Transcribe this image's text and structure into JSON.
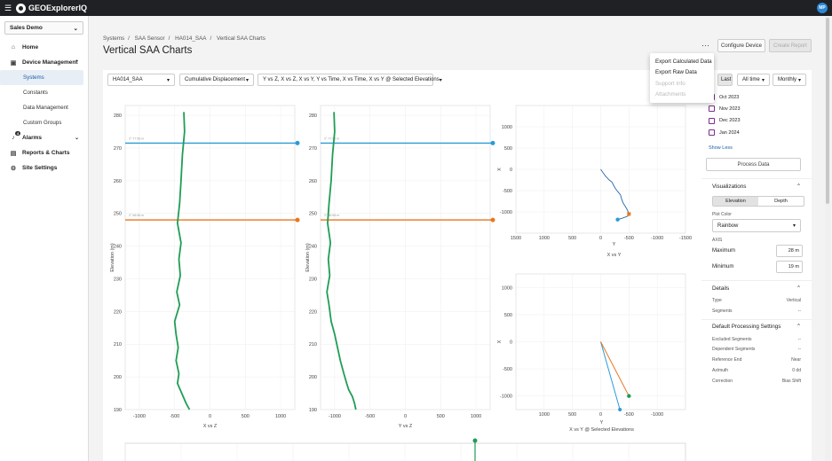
{
  "app": {
    "title": "GEOExplorerIQ",
    "avatar_initials": "MP"
  },
  "sidebar": {
    "org": "Sales Demo",
    "items": [
      {
        "label": "Home"
      },
      {
        "label": "Device Management"
      },
      {
        "label": "Alarms",
        "badge": "4"
      },
      {
        "label": "Reports & Charts"
      },
      {
        "label": "Site Settings"
      }
    ],
    "sub_items": [
      "Systems",
      "Constants",
      "Data Management",
      "Custom Groups"
    ]
  },
  "breadcrumb": [
    "Systems",
    "SAA Sensor",
    "HA014_SAA",
    "Vertical SAA Charts"
  ],
  "page": {
    "title": "Vertical SAA Charts"
  },
  "header_buttons": {
    "configure": "Configure Device",
    "create": "Create Report"
  },
  "dropdown": {
    "items": [
      "Export Calculated Data",
      "Export Raw Data",
      "Support Info",
      "Attachments"
    ]
  },
  "toolbar": {
    "device": "HA014_SAA",
    "measure": "Cumulative Displacement",
    "plots": "Y vs Z, X vs Z, X vs Y, Y vs Time, X vs Time, X vs Y @ Selected Elevations",
    "first": "e",
    "last": "Last",
    "range": "All time",
    "interval": "Monthly"
  },
  "right_panel": {
    "months": [
      "Oct 2023",
      "Nov 2023",
      "Dec 2023",
      "Jan 2024"
    ],
    "show_less": "Show Less",
    "process": "Process Data",
    "visualizations": "Visualizations",
    "tab_elevation": "Elevation",
    "tab_depth": "Depth",
    "plot_color_label": "Plot Color",
    "plot_color": "Rainbow",
    "axis_label": "AXIS",
    "maximum_label": "Maximum",
    "maximum_value": "28",
    "minimum_label": "Minimum",
    "minimum_value": "19",
    "unit": "m",
    "details": "Details",
    "type_label": "Type",
    "type_value": "Vertical",
    "segments_label": "Segments",
    "segments_value": "--",
    "default_processing": "Default Processing Settings",
    "excluded_label": "Excluded Segments",
    "excluded_value": "--",
    "dependent_label": "Dependent Segments",
    "dependent_value": "--",
    "ref_end_label": "Reference End",
    "ref_end_value": "Near",
    "azimuth_label": "Azimuth",
    "azimuth_value": "0 dd",
    "correction_label": "Correction",
    "correction_value": "Bias Shift"
  },
  "colors": {
    "series": "#1f9d55",
    "upper_line": "#2b9bd8",
    "lower_line": "#e8771e"
  },
  "chart_data": [
    {
      "type": "line",
      "xlabel": "X vs Z",
      "ylabel": "Elevation (m)",
      "xlim": [
        -1200,
        1200
      ],
      "xticks": [
        "-1000",
        "-500",
        "0",
        "500",
        "1000"
      ],
      "ylim": [
        190,
        283
      ],
      "yticks": [
        "190",
        "200",
        "210",
        "220",
        "230",
        "240",
        "250",
        "260",
        "270",
        "280"
      ],
      "series": [
        {
          "x": [
            -370,
            -360,
            -390,
            -410,
            -430,
            -460,
            -410,
            -440,
            -420,
            -470,
            -430,
            -500,
            -480,
            -450,
            -480,
            -440,
            -460,
            -420,
            -380,
            -340,
            -290
          ],
          "y": [
            281,
            275,
            268,
            260,
            253,
            247,
            241,
            236,
            231,
            226,
            222,
            217,
            213,
            209,
            205,
            201,
            198,
            196,
            194,
            192,
            190
          ]
        }
      ],
      "hlines": [
        {
          "y": 271.5,
          "label": "2°-77.56 m"
        },
        {
          "y": 248,
          "label": "2°-56.56 m"
        }
      ]
    },
    {
      "type": "line",
      "xlabel": "Y vs Z",
      "ylabel": "Elevation (m)",
      "xlim": [
        -1200,
        1200
      ],
      "xticks": [
        "-1000",
        "-500",
        "0",
        "500",
        "1000"
      ],
      "ylim": [
        190,
        283
      ],
      "yticks": [
        "190",
        "200",
        "210",
        "220",
        "230",
        "240",
        "250",
        "260",
        "270",
        "280"
      ],
      "series": [
        {
          "x": [
            -1010,
            -1000,
            -1030,
            -1050,
            -1080,
            -1100,
            -1060,
            -1090,
            -1070,
            -1110,
            -1080,
            -1050,
            -1000,
            -960,
            -920,
            -870,
            -830,
            -800,
            -750,
            -720,
            -700
          ],
          "y": [
            281,
            275,
            268,
            260,
            253,
            247,
            241,
            236,
            231,
            226,
            222,
            217,
            213,
            209,
            205,
            201,
            198,
            196,
            194,
            192,
            190
          ]
        }
      ],
      "hlines": [
        {
          "y": 271.5,
          "label": "2°-77.56 m"
        },
        {
          "y": 248,
          "label": "2°-56.56 m"
        }
      ]
    },
    {
      "type": "line",
      "xlabel": "X vs Y",
      "ylabel": "X",
      "xlim": [
        1500,
        -1500
      ],
      "xticks": [
        "1500",
        "1000",
        "500",
        "0",
        "-500",
        "-1000",
        "-1500"
      ],
      "ylim": [
        -1500,
        1500
      ],
      "yticks": [
        "1000",
        "500",
        "0",
        "-500",
        "-1000"
      ],
      "series": [
        {
          "x": [
            0,
            -80,
            -150,
            -200,
            -230,
            -260,
            -300,
            -350,
            -370,
            -400,
            -430,
            -470,
            -500,
            -480,
            -380,
            -300
          ],
          "y": [
            0,
            -150,
            -250,
            -300,
            -380,
            -450,
            -520,
            -600,
            -700,
            -800,
            -860,
            -950,
            -1050,
            -1100,
            -1150,
            -1180
          ]
        }
      ]
    },
    {
      "type": "line",
      "xlabel": "X vs Y @ Selected Elevations",
      "ylabel": "X",
      "xlim": [
        1500,
        -1500
      ],
      "xticks": [
        "1000",
        "500",
        "0",
        "-500",
        "-1000"
      ],
      "ylim": [
        -1250,
        1250
      ],
      "yticks": [
        "1000",
        "500",
        "0",
        "-500",
        "-1000"
      ],
      "series": [
        {
          "name": "upper",
          "x": [
            0,
            -340
          ],
          "y": [
            0,
            -1250
          ]
        },
        {
          "name": "lower",
          "x": [
            0,
            -500
          ],
          "y": [
            0,
            -1000
          ]
        }
      ]
    }
  ]
}
